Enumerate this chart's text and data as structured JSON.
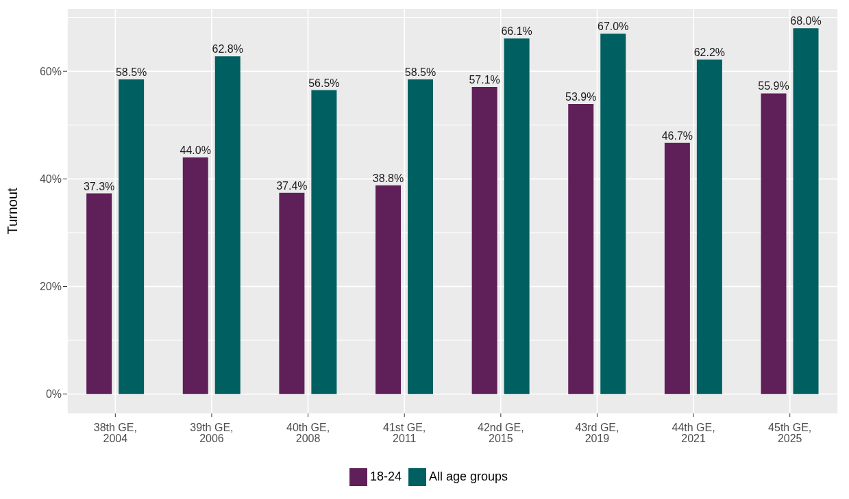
{
  "chart_data": {
    "type": "bar",
    "ylabel": "Turnout",
    "categories": [
      "38th GE, 2004",
      "39th GE, 2006",
      "40th GE, 2008",
      "41st GE, 2011",
      "42nd GE, 2015",
      "43rd GE, 2019",
      "44th GE, 2021",
      "45th GE, 2025"
    ],
    "series": [
      {
        "name": "18-24",
        "color": "#5f1f58",
        "values": [
          37.3,
          44.0,
          37.4,
          38.8,
          57.1,
          53.9,
          46.7,
          55.9
        ],
        "value_labels": [
          "37.3%",
          "44.0%",
          "37.4%",
          "38.8%",
          "57.1%",
          "53.9%",
          "46.7%",
          "55.9%"
        ]
      },
      {
        "name": "All age groups",
        "color": "#005f60",
        "values": [
          58.5,
          62.8,
          56.5,
          58.5,
          66.1,
          67.0,
          62.2,
          68.0
        ],
        "value_labels": [
          "58.5%",
          "62.8%",
          "56.5%",
          "58.5%",
          "66.1%",
          "67.0%",
          "62.2%",
          "68.0%"
        ]
      }
    ],
    "ylim": [
      -3.6,
      71.6
    ],
    "yticks": [
      {
        "value": 0,
        "label": "0%"
      },
      {
        "value": 20,
        "label": "20%"
      },
      {
        "value": 40,
        "label": "40%"
      },
      {
        "value": 60,
        "label": "60%"
      }
    ],
    "grid": true,
    "legend": "bottom"
  }
}
